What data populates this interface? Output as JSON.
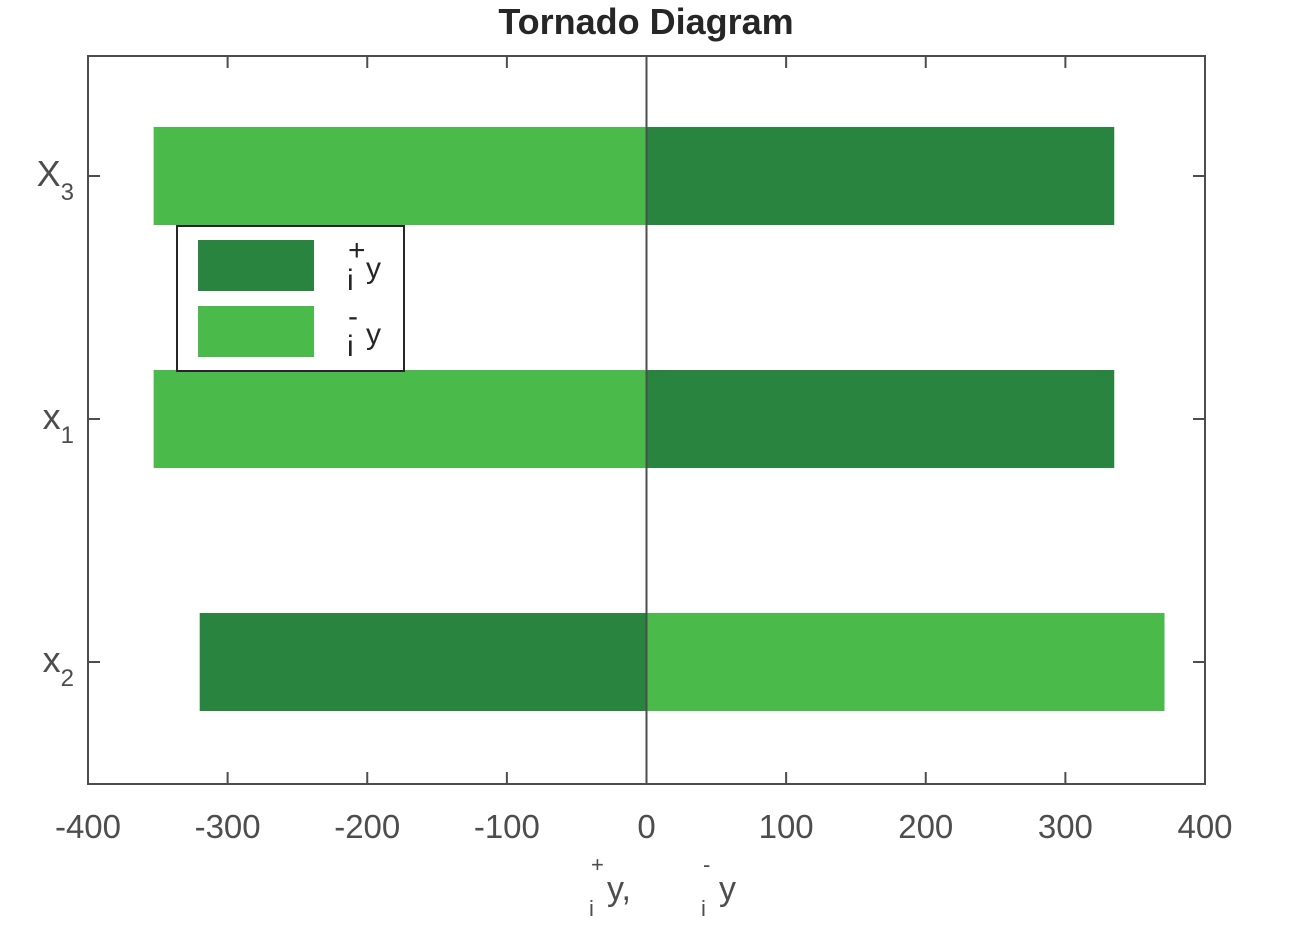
{
  "chart_data": {
    "type": "bar",
    "orientation": "horizontal",
    "title": "Tornado Diagram",
    "xlabel": {
      "part1_sup": "+",
      "part1_sub": "i",
      "part1_main": "y,",
      "part2_sup": "-",
      "part2_sub": "i",
      "part2_main": "y"
    },
    "xlim": [
      -400,
      400
    ],
    "xticks": [
      -400,
      -300,
      -200,
      -100,
      0,
      100,
      200,
      300,
      400
    ],
    "xtick_labels": [
      "-400",
      "-300",
      "-200",
      "-100",
      "0",
      "100",
      "200",
      "300",
      "400"
    ],
    "categories": [
      {
        "base": "X",
        "sub": "3"
      },
      {
        "base": "x",
        "sub": "1"
      },
      {
        "base": "x",
        "sub": "2"
      }
    ],
    "series": [
      {
        "legend": {
          "sup": "+",
          "sub": "i",
          "main": "y"
        },
        "color": "#28843e",
        "values": [
          335,
          335,
          -320
        ]
      },
      {
        "legend": {
          "sup": "-",
          "sub": "i",
          "main": "y"
        },
        "color": "#4aba4a",
        "values": [
          -353,
          -353,
          371
        ]
      }
    ],
    "legend_position": "upper-left",
    "grid": false
  }
}
